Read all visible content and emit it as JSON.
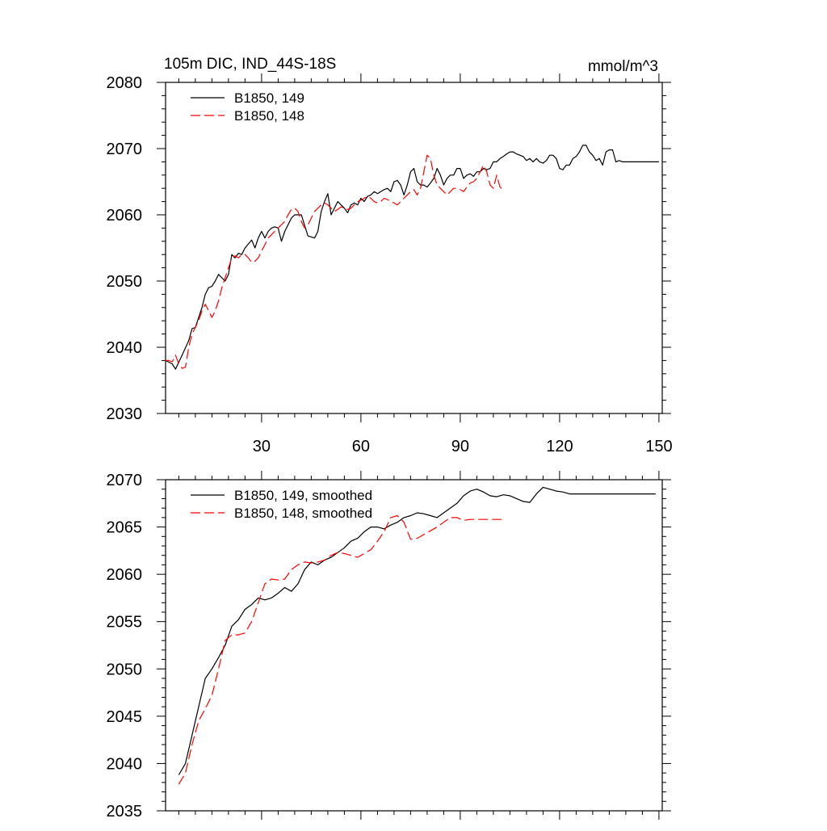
{
  "chart_data": [
    {
      "type": "line",
      "title": "105m DIC, IND_44S-18S",
      "units": "mmol/m^3",
      "xlim": [
        1,
        151
      ],
      "ylim": [
        2030,
        2080
      ],
      "x_ticks": [
        30,
        60,
        90,
        120,
        150
      ],
      "y_ticks": [
        2030,
        2040,
        2050,
        2060,
        2070,
        2080
      ],
      "legend": "top-left",
      "series": [
        {
          "name": "B1850, 149",
          "color": "#000000",
          "dash": "solid",
          "x": [
            1,
            3,
            4,
            6,
            8,
            9,
            10,
            11,
            12,
            13,
            14,
            15,
            16,
            17,
            19,
            20,
            21,
            22,
            23,
            24,
            25,
            27,
            28,
            29,
            30,
            31,
            32,
            33,
            34,
            35,
            36,
            37,
            38,
            39,
            40,
            42,
            44,
            46,
            47,
            48,
            49,
            50,
            51,
            52,
            53,
            54,
            55,
            56,
            57,
            58,
            59,
            60,
            61,
            62,
            63,
            64,
            65,
            66,
            67,
            68,
            69,
            70,
            71,
            72,
            73,
            74,
            75,
            76,
            77,
            78,
            79,
            80,
            81,
            82,
            83,
            84,
            85,
            86,
            87,
            88,
            89,
            90,
            91,
            92,
            93,
            94,
            95,
            96,
            97,
            98,
            99,
            100,
            101,
            102,
            103,
            104,
            105,
            106,
            107,
            108,
            109,
            110,
            111,
            112,
            113,
            114,
            115,
            116,
            117,
            118,
            119,
            120,
            121,
            122,
            123,
            124,
            125,
            126,
            127,
            128,
            129,
            130,
            131,
            132,
            133,
            134,
            135,
            136,
            137,
            138,
            139,
            140,
            141,
            142,
            143,
            144,
            145,
            146,
            147,
            148,
            149,
            150
          ],
          "values": [
            2038.0,
            2037.5,
            2036.7,
            2038.8,
            2041.0,
            2042.8,
            2043.0,
            2044.5,
            2046.0,
            2048.0,
            2049.0,
            2049.2,
            2050.0,
            2051.0,
            2050.0,
            2051.0,
            2054.0,
            2053.5,
            2054.2,
            2054.0,
            2055.0,
            2056.2,
            2055.0,
            2056.5,
            2057.5,
            2056.5,
            2057.5,
            2058.0,
            2058.2,
            2058.0,
            2056.0,
            2057.5,
            2058.5,
            2059.5,
            2060.0,
            2060.0,
            2056.8,
            2056.5,
            2057.5,
            2060.5,
            2062.0,
            2063.2,
            2060.0,
            2061.0,
            2062.0,
            2061.5,
            2061.0,
            2060.3,
            2061.5,
            2061.8,
            2061.5,
            2062.5,
            2062.0,
            2062.8,
            2063.0,
            2063.5,
            2063.2,
            2063.5,
            2063.8,
            2064.0,
            2063.5,
            2065.0,
            2065.2,
            2064.5,
            2063.0,
            2064.5,
            2066.5,
            2067.0,
            2065.0,
            2064.5,
            2064.5,
            2064.2,
            2064.8,
            2065.5,
            2067.0,
            2066.0,
            2064.5,
            2065.5,
            2066.0,
            2066.0,
            2067.0,
            2067.0,
            2065.5,
            2066.0,
            2066.2,
            2065.8,
            2066.5,
            2066.5,
            2067.0,
            2066.8,
            2067.0,
            2068.0,
            2068.0,
            2068.5,
            2068.8,
            2069.2,
            2069.5,
            2069.5,
            2069.2,
            2069.0,
            2068.8,
            2068.2,
            2068.5,
            2068.0,
            2068.5,
            2068.0,
            2067.8,
            2068.2,
            2069.0,
            2069.0,
            2068.5,
            2067.0,
            2066.8,
            2067.5,
            2067.5,
            2068.5,
            2068.8,
            2069.5,
            2070.5,
            2070.5,
            2069.5,
            2069.0,
            2068.2,
            2068.5,
            2067.5,
            2069.5,
            2069.8,
            2069.8,
            2068.0,
            2068.2,
            2068.0,
            2068.0,
            2068.0,
            2068.0,
            2068.0,
            2068.0,
            2068.0,
            2068.0,
            2068.0,
            2068.0,
            2068.0,
            2068.0
          ]
        },
        {
          "name": "B1850, 148",
          "color": "#ff0000",
          "dash": "dashed",
          "x": [
            1,
            2,
            3,
            4,
            5,
            6,
            7,
            8,
            9,
            10,
            11,
            12,
            13,
            14,
            15,
            16,
            17,
            18,
            19,
            20,
            21,
            22,
            23,
            24,
            25,
            26,
            27,
            28,
            29,
            30,
            31,
            32,
            33,
            34,
            35,
            36,
            37,
            38,
            39,
            40,
            41,
            42,
            43,
            44,
            45,
            46,
            47,
            48,
            49,
            50,
            51,
            52,
            53,
            54,
            55,
            56,
            57,
            58,
            59,
            60,
            61,
            62,
            63,
            64,
            65,
            66,
            67,
            68,
            69,
            70,
            71,
            72,
            73,
            74,
            75,
            76,
            77,
            78,
            79,
            80,
            81,
            82,
            83,
            84,
            85,
            86,
            87,
            88,
            89,
            90,
            91,
            92,
            93,
            94,
            95,
            96,
            97,
            98,
            99,
            100,
            101,
            102,
            103
          ],
          "values": [
            2038.0,
            2038.0,
            2037.8,
            2038.8,
            2037.5,
            2036.8,
            2037.0,
            2040.0,
            2042.0,
            2043.0,
            2044.0,
            2045.5,
            2046.5,
            2045.5,
            2044.5,
            2045.5,
            2047.0,
            2049.0,
            2050.5,
            2052.0,
            2053.5,
            2053.8,
            2053.5,
            2054.0,
            2054.0,
            2053.5,
            2052.8,
            2053.0,
            2053.5,
            2054.5,
            2055.5,
            2056.5,
            2057.0,
            2057.5,
            2058.0,
            2058.5,
            2059.0,
            2060.0,
            2060.8,
            2061.0,
            2060.5,
            2059.0,
            2058.0,
            2058.5,
            2059.5,
            2060.5,
            2061.0,
            2061.5,
            2061.8,
            2061.5,
            2061.0,
            2060.5,
            2060.8,
            2061.2,
            2061.0,
            2060.8,
            2061.0,
            2061.5,
            2062.0,
            2062.2,
            2062.5,
            2062.8,
            2062.5,
            2062.0,
            2061.8,
            2062.0,
            2062.5,
            2062.3,
            2062.0,
            2061.8,
            2061.5,
            2062.0,
            2062.5,
            2063.0,
            2063.5,
            2063.8,
            2063.0,
            2064.0,
            2066.5,
            2069.0,
            2068.5,
            2066.0,
            2064.5,
            2064.0,
            2063.5,
            2063.0,
            2063.5,
            2064.0,
            2064.0,
            2063.8,
            2063.5,
            2064.2,
            2064.8,
            2065.0,
            2065.5,
            2066.5,
            2067.5,
            2066.5,
            2064.5,
            2064.0,
            2066.0,
            2064.2,
            2063.8
          ]
        }
      ]
    },
    {
      "type": "line",
      "title": "",
      "xlim": [
        1,
        151
      ],
      "ylim": [
        2035,
        2070
      ],
      "x_ticks": [
        30,
        60,
        90,
        120,
        150
      ],
      "y_ticks": [
        2035,
        2040,
        2045,
        2050,
        2055,
        2060,
        2065,
        2070
      ],
      "legend": "top-left",
      "series": [
        {
          "name": "B1850, 149, smoothed",
          "color": "#000000",
          "dash": "solid",
          "x": [
            5,
            7,
            9,
            11,
            13,
            15,
            17,
            19,
            21,
            23,
            25,
            27,
            29,
            31,
            33,
            35,
            37,
            39,
            41,
            43,
            45,
            47,
            49,
            51,
            53,
            55,
            57,
            59,
            61,
            63,
            65,
            67,
            69,
            71,
            73,
            75,
            77,
            79,
            81,
            83,
            85,
            87,
            89,
            91,
            93,
            95,
            97,
            99,
            101,
            103,
            105,
            107,
            109,
            111,
            113,
            115,
            117,
            119,
            121,
            123,
            125,
            127,
            129,
            131,
            133,
            135,
            137,
            139,
            141,
            143,
            145,
            147,
            149
          ],
          "values": [
            2038.8,
            2040.0,
            2043.0,
            2046.0,
            2049.0,
            2050.0,
            2051.2,
            2052.5,
            2054.5,
            2055.2,
            2056.3,
            2056.8,
            2057.5,
            2057.3,
            2057.5,
            2058.0,
            2058.6,
            2058.2,
            2059.0,
            2060.5,
            2061.3,
            2061.0,
            2061.5,
            2061.8,
            2062.3,
            2062.8,
            2063.5,
            2063.8,
            2064.5,
            2065.0,
            2065.0,
            2064.8,
            2065.2,
            2065.5,
            2066.0,
            2066.2,
            2066.5,
            2066.4,
            2066.2,
            2066.0,
            2066.5,
            2067.0,
            2067.5,
            2068.3,
            2068.8,
            2069.0,
            2068.7,
            2068.3,
            2068.2,
            2068.4,
            2068.3,
            2068.0,
            2067.7,
            2067.6,
            2068.5,
            2069.2,
            2069.0,
            2068.8,
            2068.7,
            2068.5,
            2068.5,
            2068.5,
            2068.5,
            2068.5,
            2068.5,
            2068.5,
            2068.5,
            2068.5,
            2068.5,
            2068.5,
            2068.5,
            2068.5,
            2068.5
          ]
        },
        {
          "name": "B1850, 148, smoothed",
          "color": "#ff0000",
          "dash": "dashed",
          "x": [
            5,
            7,
            9,
            11,
            13,
            15,
            17,
            19,
            21,
            23,
            25,
            27,
            29,
            31,
            33,
            35,
            37,
            39,
            41,
            43,
            45,
            47,
            49,
            51,
            53,
            55,
            57,
            59,
            61,
            63,
            65,
            67,
            69,
            71,
            73,
            75,
            77,
            79,
            81,
            83,
            85,
            87,
            89,
            91,
            93,
            95,
            97,
            99,
            101,
            103
          ],
          "values": [
            2037.8,
            2039.0,
            2042.0,
            2044.5,
            2045.8,
            2047.2,
            2050.0,
            2053.0,
            2053.6,
            2053.6,
            2053.8,
            2055.0,
            2057.0,
            2059.0,
            2059.5,
            2059.4,
            2059.5,
            2060.5,
            2061.0,
            2061.3,
            2061.2,
            2061.3,
            2061.5,
            2062.0,
            2062.3,
            2062.2,
            2062.0,
            2061.8,
            2062.2,
            2062.6,
            2063.5,
            2064.5,
            2066.0,
            2066.2,
            2065.5,
            2063.7,
            2063.8,
            2064.2,
            2064.6,
            2065.0,
            2065.5,
            2066.0,
            2066.0,
            2065.7,
            2065.8,
            2065.8,
            2065.8,
            2065.8,
            2065.8,
            2065.8
          ]
        }
      ]
    }
  ]
}
